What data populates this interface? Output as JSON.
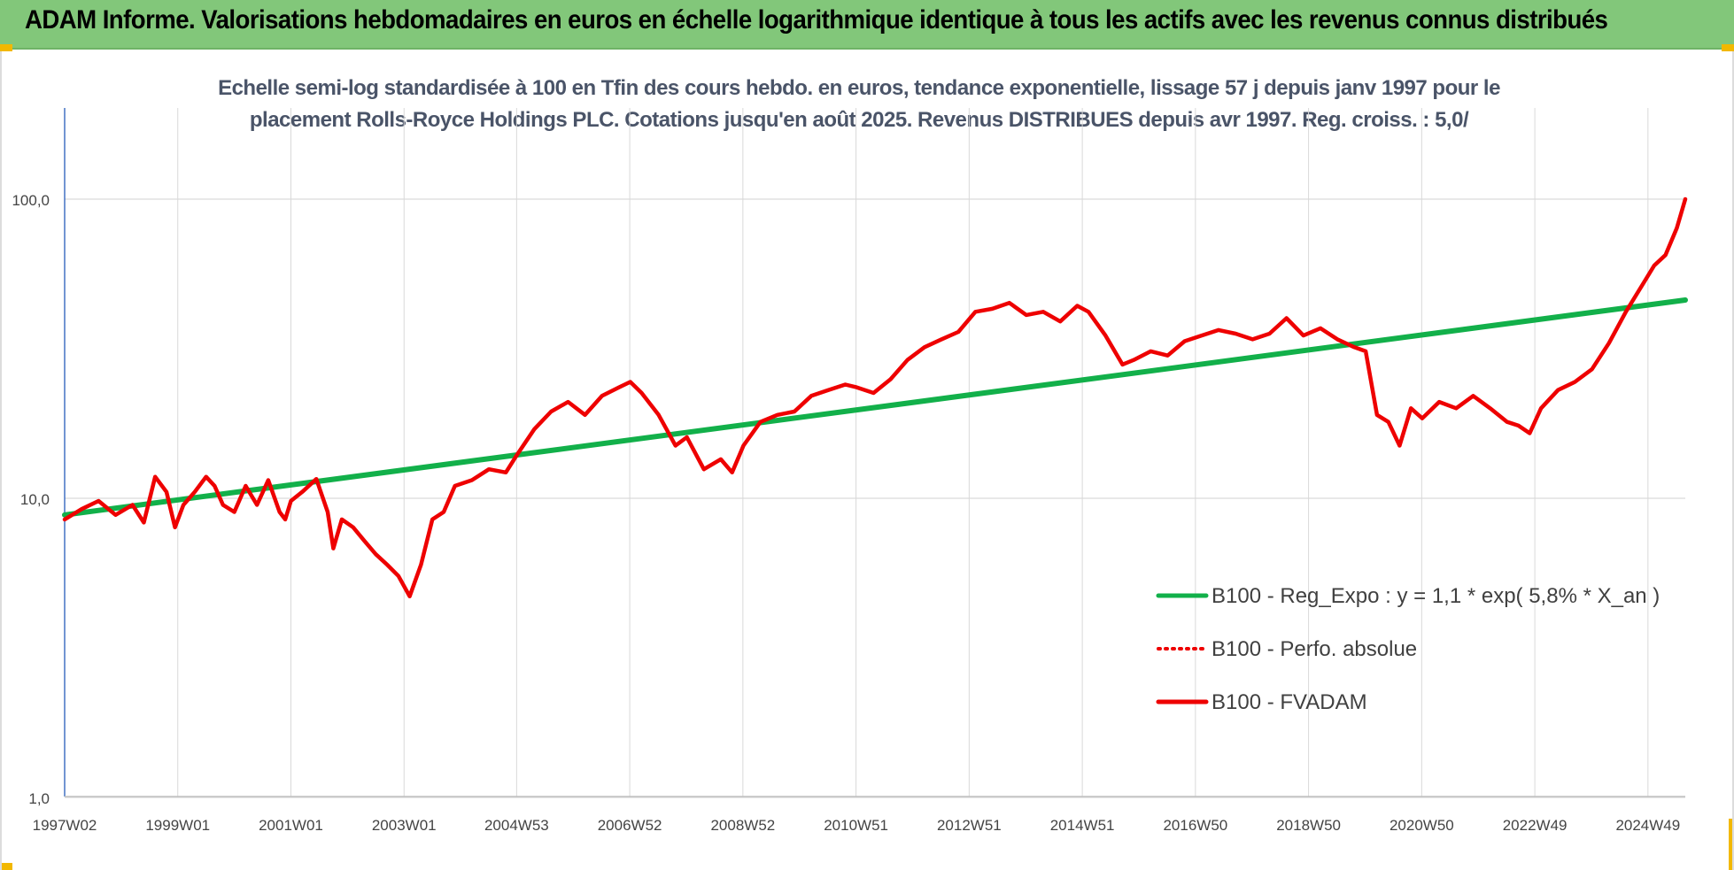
{
  "header": {
    "title": "ADAM Informe. Valorisations hebdomadaires en euros en échelle logarithmique identique à tous les actifs avec les revenus connus distribués"
  },
  "colors": {
    "header_bg": "#82c77a",
    "corner_accent": "#f2b800",
    "trend_line": "#12b04a",
    "fvadam_line": "#ee0000",
    "perfo_line": "#ee0000",
    "grid": "#d9d9d9",
    "axis": "#4472c4",
    "text": "#4a5468"
  },
  "chart_data": {
    "type": "line",
    "title_line1": "Echelle semi-log standardisée à 100 en Tfin des cours hebdo. en euros, tendance exponentielle, lissage 57 j depuis janv 1997 pour le",
    "title_line2": "placement Rolls-Royce Holdings PLC. Cotations jusqu'en août 2025. Revenus DISTRIBUES depuis avr 1997. Reg. croiss. : 5,0/",
    "y_scale": "log",
    "ylim": [
      1,
      200
    ],
    "y_ticks": [
      {
        "value": 1,
        "label": "1,0"
      },
      {
        "value": 10,
        "label": "10,0"
      },
      {
        "value": 100,
        "label": "100,0"
      }
    ],
    "xlim": [
      1997.0,
      2025.65
    ],
    "x_ticks": [
      {
        "value": 1997.0,
        "label": "1997W02"
      },
      {
        "value": 1999.0,
        "label": "1999W01"
      },
      {
        "value": 2001.0,
        "label": "2001W01"
      },
      {
        "value": 2003.0,
        "label": "2003W01"
      },
      {
        "value": 2004.99,
        "label": "2004W53"
      },
      {
        "value": 2006.99,
        "label": "2006W52"
      },
      {
        "value": 2008.99,
        "label": "2008W52"
      },
      {
        "value": 2010.99,
        "label": "2010W51"
      },
      {
        "value": 2012.99,
        "label": "2012W51"
      },
      {
        "value": 2014.99,
        "label": "2014W51"
      },
      {
        "value": 2016.99,
        "label": "2016W50"
      },
      {
        "value": 2018.99,
        "label": "2018W50"
      },
      {
        "value": 2020.99,
        "label": "2020W50"
      },
      {
        "value": 2022.99,
        "label": "2022W49"
      },
      {
        "value": 2024.99,
        "label": "2024W49"
      }
    ],
    "grid": true,
    "legend_position": "right",
    "series": [
      {
        "name": "B100 - Reg_Expo : y = 1,1 * exp( 5,8% *  X_an )",
        "style": "solid-thick",
        "x": [
          1997.0,
          2025.65
        ],
        "y": [
          8.8,
          46.0
        ]
      },
      {
        "name": "B100 - Perfo. absolue",
        "style": "dotted",
        "x": [],
        "y": []
      },
      {
        "name": "B100 - FVADAM",
        "style": "solid",
        "x": [
          1997.0,
          1997.3,
          1997.6,
          1997.9,
          1998.2,
          1998.4,
          1998.6,
          1998.8,
          1998.95,
          1999.1,
          1999.3,
          1999.5,
          1999.65,
          1999.8,
          2000.0,
          2000.2,
          2000.4,
          2000.6,
          2000.8,
          2000.9,
          2001.0,
          2001.2,
          2001.45,
          2001.65,
          2001.75,
          2001.9,
          2002.1,
          2002.3,
          2002.5,
          2002.7,
          2002.9,
          2003.1,
          2003.3,
          2003.5,
          2003.7,
          2003.9,
          2004.2,
          2004.5,
          2004.8,
          2005.0,
          2005.3,
          2005.6,
          2005.9,
          2006.2,
          2006.5,
          2006.8,
          2007.0,
          2007.2,
          2007.5,
          2007.8,
          2008.0,
          2008.3,
          2008.6,
          2008.8,
          2009.0,
          2009.3,
          2009.6,
          2009.9,
          2010.2,
          2010.5,
          2010.8,
          2011.0,
          2011.3,
          2011.6,
          2011.9,
          2012.2,
          2012.5,
          2012.8,
          2013.1,
          2013.4,
          2013.7,
          2014.0,
          2014.3,
          2014.6,
          2014.9,
          2015.1,
          2015.4,
          2015.7,
          2015.9,
          2016.2,
          2016.5,
          2016.8,
          2017.1,
          2017.4,
          2017.7,
          2018.0,
          2018.3,
          2018.6,
          2018.9,
          2019.2,
          2019.5,
          2019.8,
          2020.0,
          2020.2,
          2020.4,
          2020.6,
          2020.8,
          2021.0,
          2021.3,
          2021.6,
          2021.9,
          2022.2,
          2022.5,
          2022.7,
          2022.9,
          2023.1,
          2023.4,
          2023.7,
          2024.0,
          2024.3,
          2024.6,
          2024.9,
          2025.1,
          2025.3,
          2025.5,
          2025.65
        ],
        "y": [
          8.5,
          9.2,
          9.8,
          8.8,
          9.5,
          8.3,
          11.8,
          10.5,
          8.0,
          9.5,
          10.5,
          11.8,
          11.0,
          9.5,
          9.0,
          11.0,
          9.5,
          11.5,
          9.0,
          8.5,
          9.8,
          10.5,
          11.6,
          9.0,
          6.8,
          8.5,
          8.0,
          7.2,
          6.5,
          6.0,
          5.5,
          4.7,
          6.0,
          8.5,
          9.0,
          11.0,
          11.5,
          12.5,
          12.2,
          14.0,
          17.0,
          19.5,
          21.0,
          19.0,
          22.0,
          23.5,
          24.5,
          22.5,
          19.0,
          15.0,
          16.0,
          12.5,
          13.5,
          12.2,
          15.0,
          18.0,
          19.0,
          19.5,
          22.0,
          23.0,
          24.0,
          23.5,
          22.5,
          25.0,
          29.0,
          32.0,
          34.0,
          36.0,
          42.0,
          43.0,
          45.0,
          41.0,
          42.0,
          39.0,
          44.0,
          42.0,
          35.0,
          28.0,
          29.0,
          31.0,
          30.0,
          33.5,
          35.0,
          36.5,
          35.5,
          34.0,
          35.5,
          40.0,
          35.0,
          37.0,
          34.0,
          32.0,
          31.0,
          19.0,
          18.0,
          15.0,
          20.0,
          18.5,
          21.0,
          20.0,
          22.0,
          20.0,
          18.0,
          17.5,
          16.5,
          20.0,
          23.0,
          24.5,
          27.0,
          33.0,
          42.0,
          52.0,
          60.0,
          65.0,
          80.0,
          100.0
        ]
      }
    ]
  }
}
